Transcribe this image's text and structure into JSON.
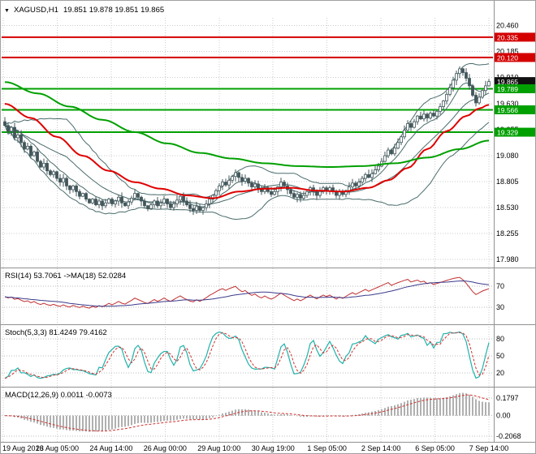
{
  "header": {
    "dropdown_icon": "▼",
    "symbol": "XAGUSD,H1",
    "ohlc": "19.851 19.878 19.851 19.865"
  },
  "price_axis": {
    "ticks": [
      "20.460",
      "20.185",
      "19.910",
      "19.630",
      "19.355",
      "19.080",
      "18.805",
      "18.530",
      "18.255",
      "17.980"
    ]
  },
  "time_axis": {
    "labels": [
      "19 Aug 2016",
      "23 Aug 05:00",
      "24 Aug 14:00",
      "26 Aug 00:00",
      "29 Aug 10:00",
      "30 Aug 19:00",
      "1 Sep 05:00",
      "2 Sep 14:00",
      "6 Sep 05:00",
      "7 Sep 14:00"
    ]
  },
  "price_labels": [
    {
      "text": "20.335",
      "color": "#d40000",
      "line": true
    },
    {
      "text": "20.120",
      "color": "#d40000",
      "line": true
    },
    {
      "text": "19.865",
      "color": "#111111",
      "line": false
    },
    {
      "text": "19.789",
      "color": "#00a000",
      "line": true
    },
    {
      "text": "19.566",
      "color": "#00a000",
      "line": true
    },
    {
      "text": "19.329",
      "color": "#00a000",
      "line": true
    }
  ],
  "panels": {
    "rsi": {
      "label": "RSI(14) 53.7061  ->MA(18) 52.0284",
      "levels": [
        "70",
        "30"
      ]
    },
    "stoch": {
      "label": "Stoch(5,3,3) 81.4249 79.4162",
      "levels": [
        "80",
        "50",
        "20"
      ]
    },
    "macd": {
      "label": "MACD(12,26,9) 0.0011 -0.0073",
      "levels": [
        "0.1797",
        "0.00",
        "-0.2068"
      ]
    }
  },
  "colors": {
    "grid": "#cccccc",
    "divider": "#909090",
    "candle": "#41565a",
    "candle_bull_fill": "#ffffff",
    "bollinger": "#4a6b6b",
    "ma_red": "#e00000",
    "ma_green": "#00a000",
    "level_red": "#d40000",
    "level_green": "#00a000",
    "rsi_line": "#c03030",
    "rsi_ma": "#3a3a8c",
    "stoch_k": "#20b2aa",
    "stoch_d": "#d03030",
    "macd_hist": "#b0b0b0",
    "macd_signal": "#d03030",
    "border": "#a0a0a0"
  },
  "chart_data": {
    "type": "candlestick",
    "title": "XAGUSD,H1",
    "timeframe": "H1",
    "ohlc_last": {
      "open": 19.851,
      "high": 19.878,
      "low": 19.851,
      "close": 19.865
    },
    "x_tick_labels": [
      "19 Aug 2016",
      "23 Aug 05:00",
      "24 Aug 14:00",
      "26 Aug 00:00",
      "29 Aug 10:00",
      "30 Aug 19:00",
      "1 Sep 05:00",
      "2 Sep 14:00",
      "6 Sep 05:00",
      "7 Sep 14:00"
    ],
    "y_tick_labels": [
      20.46,
      20.185,
      19.91,
      19.63,
      19.355,
      19.08,
      18.805,
      18.53,
      18.255,
      17.98
    ],
    "y_range": [
      17.93,
      20.54
    ],
    "close": [
      19.4,
      19.34,
      19.38,
      19.27,
      19.3,
      19.22,
      19.15,
      19.18,
      19.08,
      19.12,
      19.02,
      18.96,
      19.0,
      18.92,
      18.88,
      18.91,
      18.84,
      18.8,
      18.84,
      18.76,
      18.72,
      18.76,
      18.7,
      18.65,
      18.68,
      18.62,
      18.58,
      18.62,
      18.56,
      18.6,
      18.55,
      18.58,
      18.62,
      18.57,
      18.6,
      18.64,
      18.58,
      18.55,
      18.59,
      18.63,
      18.68,
      18.64,
      18.6,
      18.55,
      18.52,
      18.56,
      18.6,
      18.55,
      18.58,
      18.62,
      18.57,
      18.53,
      18.57,
      18.61,
      18.65,
      18.6,
      18.56,
      18.52,
      18.5,
      18.54,
      18.5,
      18.53,
      18.57,
      18.62,
      18.66,
      18.71,
      18.76,
      18.8,
      18.77,
      18.82,
      18.86,
      18.9,
      18.85,
      18.81,
      18.84,
      18.79,
      18.75,
      18.78,
      18.73,
      18.7,
      18.74,
      18.7,
      18.67,
      18.7,
      18.75,
      18.8,
      18.76,
      18.72,
      18.68,
      18.64,
      18.67,
      18.63,
      18.66,
      18.7,
      18.74,
      18.7,
      18.66,
      18.7,
      18.74,
      18.71,
      18.74,
      18.7,
      18.66,
      18.7,
      18.67,
      18.71,
      18.75,
      18.79,
      18.76,
      18.8,
      18.84,
      18.88,
      18.85,
      18.89,
      18.93,
      18.97,
      19.02,
      19.08,
      19.14,
      19.1,
      19.16,
      19.22,
      19.28,
      19.35,
      19.42,
      19.38,
      19.44,
      19.5,
      19.47,
      19.52,
      19.48,
      19.53,
      19.5,
      19.55,
      19.6,
      19.66,
      19.73,
      19.8,
      19.88,
      19.95,
      20.0,
      19.96,
      19.9,
      19.82,
      19.72,
      19.64,
      19.7,
      19.77,
      19.82,
      19.865
    ],
    "overlays": {
      "red_ma_points": [
        [
          0,
          19.63
        ],
        [
          8,
          19.48
        ],
        [
          16,
          19.28
        ],
        [
          24,
          19.08
        ],
        [
          32,
          18.92
        ],
        [
          40,
          18.8
        ],
        [
          48,
          18.73
        ],
        [
          56,
          18.66
        ],
        [
          64,
          18.63
        ],
        [
          72,
          18.7
        ],
        [
          80,
          18.73
        ],
        [
          88,
          18.74
        ],
        [
          96,
          18.71
        ],
        [
          104,
          18.7
        ],
        [
          112,
          18.74
        ],
        [
          118,
          18.82
        ],
        [
          124,
          18.95
        ],
        [
          130,
          19.15
        ],
        [
          136,
          19.34
        ],
        [
          142,
          19.5
        ],
        [
          146,
          19.58
        ],
        [
          149,
          19.62
        ]
      ],
      "green_ma_points": [
        [
          0,
          19.86
        ],
        [
          10,
          19.74
        ],
        [
          20,
          19.6
        ],
        [
          30,
          19.46
        ],
        [
          40,
          19.33
        ],
        [
          50,
          19.21
        ],
        [
          60,
          19.11
        ],
        [
          70,
          19.05
        ],
        [
          80,
          19.0
        ],
        [
          90,
          18.97
        ],
        [
          100,
          18.96
        ],
        [
          110,
          18.97
        ],
        [
          120,
          19.0
        ],
        [
          130,
          19.06
        ],
        [
          140,
          19.15
        ],
        [
          149,
          19.24
        ]
      ],
      "bollinger": {
        "window": 20,
        "deviation": 2
      }
    },
    "levels": {
      "resistance": [
        20.335,
        20.12
      ],
      "support": [
        19.789,
        19.566,
        19.329
      ],
      "current_price": 19.865
    },
    "subpanels": [
      {
        "type": "line",
        "name": "RSI",
        "params": [
          14
        ],
        "value": 53.7061,
        "ma_period": 18,
        "ma_value": 52.0284,
        "scale_marks": [
          70,
          30
        ]
      },
      {
        "type": "line",
        "name": "Stochastic",
        "params": [
          5,
          3,
          3
        ],
        "k": 81.4249,
        "d": 79.4162,
        "scale_marks": [
          80,
          50,
          20
        ]
      },
      {
        "type": "histogram",
        "name": "MACD",
        "params": [
          12,
          26,
          9
        ],
        "value": 0.0011,
        "signal": -0.0073,
        "scale_marks": [
          0.1797,
          0.0,
          -0.2068
        ]
      }
    ]
  }
}
